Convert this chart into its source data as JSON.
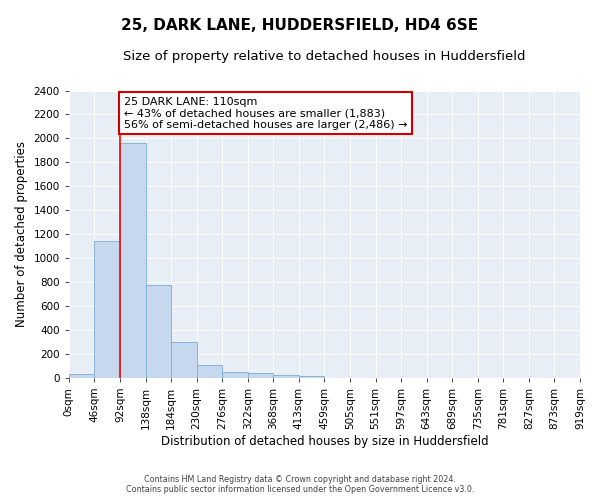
{
  "title1": "25, DARK LANE, HUDDERSFIELD, HD4 6SE",
  "title2": "Size of property relative to detached houses in Huddersfield",
  "xlabel": "Distribution of detached houses by size in Huddersfield",
  "ylabel": "Number of detached properties",
  "footer1": "Contains HM Land Registry data © Crown copyright and database right 2024.",
  "footer2": "Contains public sector information licensed under the Open Government Licence v3.0.",
  "bin_labels": [
    "0sqm",
    "46sqm",
    "92sqm",
    "138sqm",
    "184sqm",
    "230sqm",
    "276sqm",
    "322sqm",
    "368sqm",
    "413sqm",
    "459sqm",
    "505sqm",
    "551sqm",
    "597sqm",
    "643sqm",
    "689sqm",
    "735sqm",
    "781sqm",
    "827sqm",
    "873sqm",
    "919sqm"
  ],
  "bar_values": [
    35,
    1140,
    1960,
    775,
    300,
    105,
    50,
    40,
    22,
    18,
    0,
    0,
    0,
    0,
    0,
    0,
    0,
    0,
    0,
    0
  ],
  "bar_color": "#c5d8ee",
  "bar_edge_color": "#7aadd4",
  "annotation_text": "25 DARK LANE: 110sqm\n← 43% of detached houses are smaller (1,883)\n56% of semi-detached houses are larger (2,486) →",
  "annotation_box_color": "#ffffff",
  "annotation_box_edge": "#cc0000",
  "red_line_bin": 2,
  "ylim": [
    0,
    2400
  ],
  "yticks": [
    0,
    200,
    400,
    600,
    800,
    1000,
    1200,
    1400,
    1600,
    1800,
    2000,
    2200,
    2400
  ],
  "background_color": "#e8eef6",
  "grid_color": "#ffffff",
  "title1_fontsize": 11,
  "title2_fontsize": 9.5,
  "xlabel_fontsize": 8.5,
  "ylabel_fontsize": 8.5,
  "tick_fontsize": 7.5,
  "annot_fontsize": 8
}
